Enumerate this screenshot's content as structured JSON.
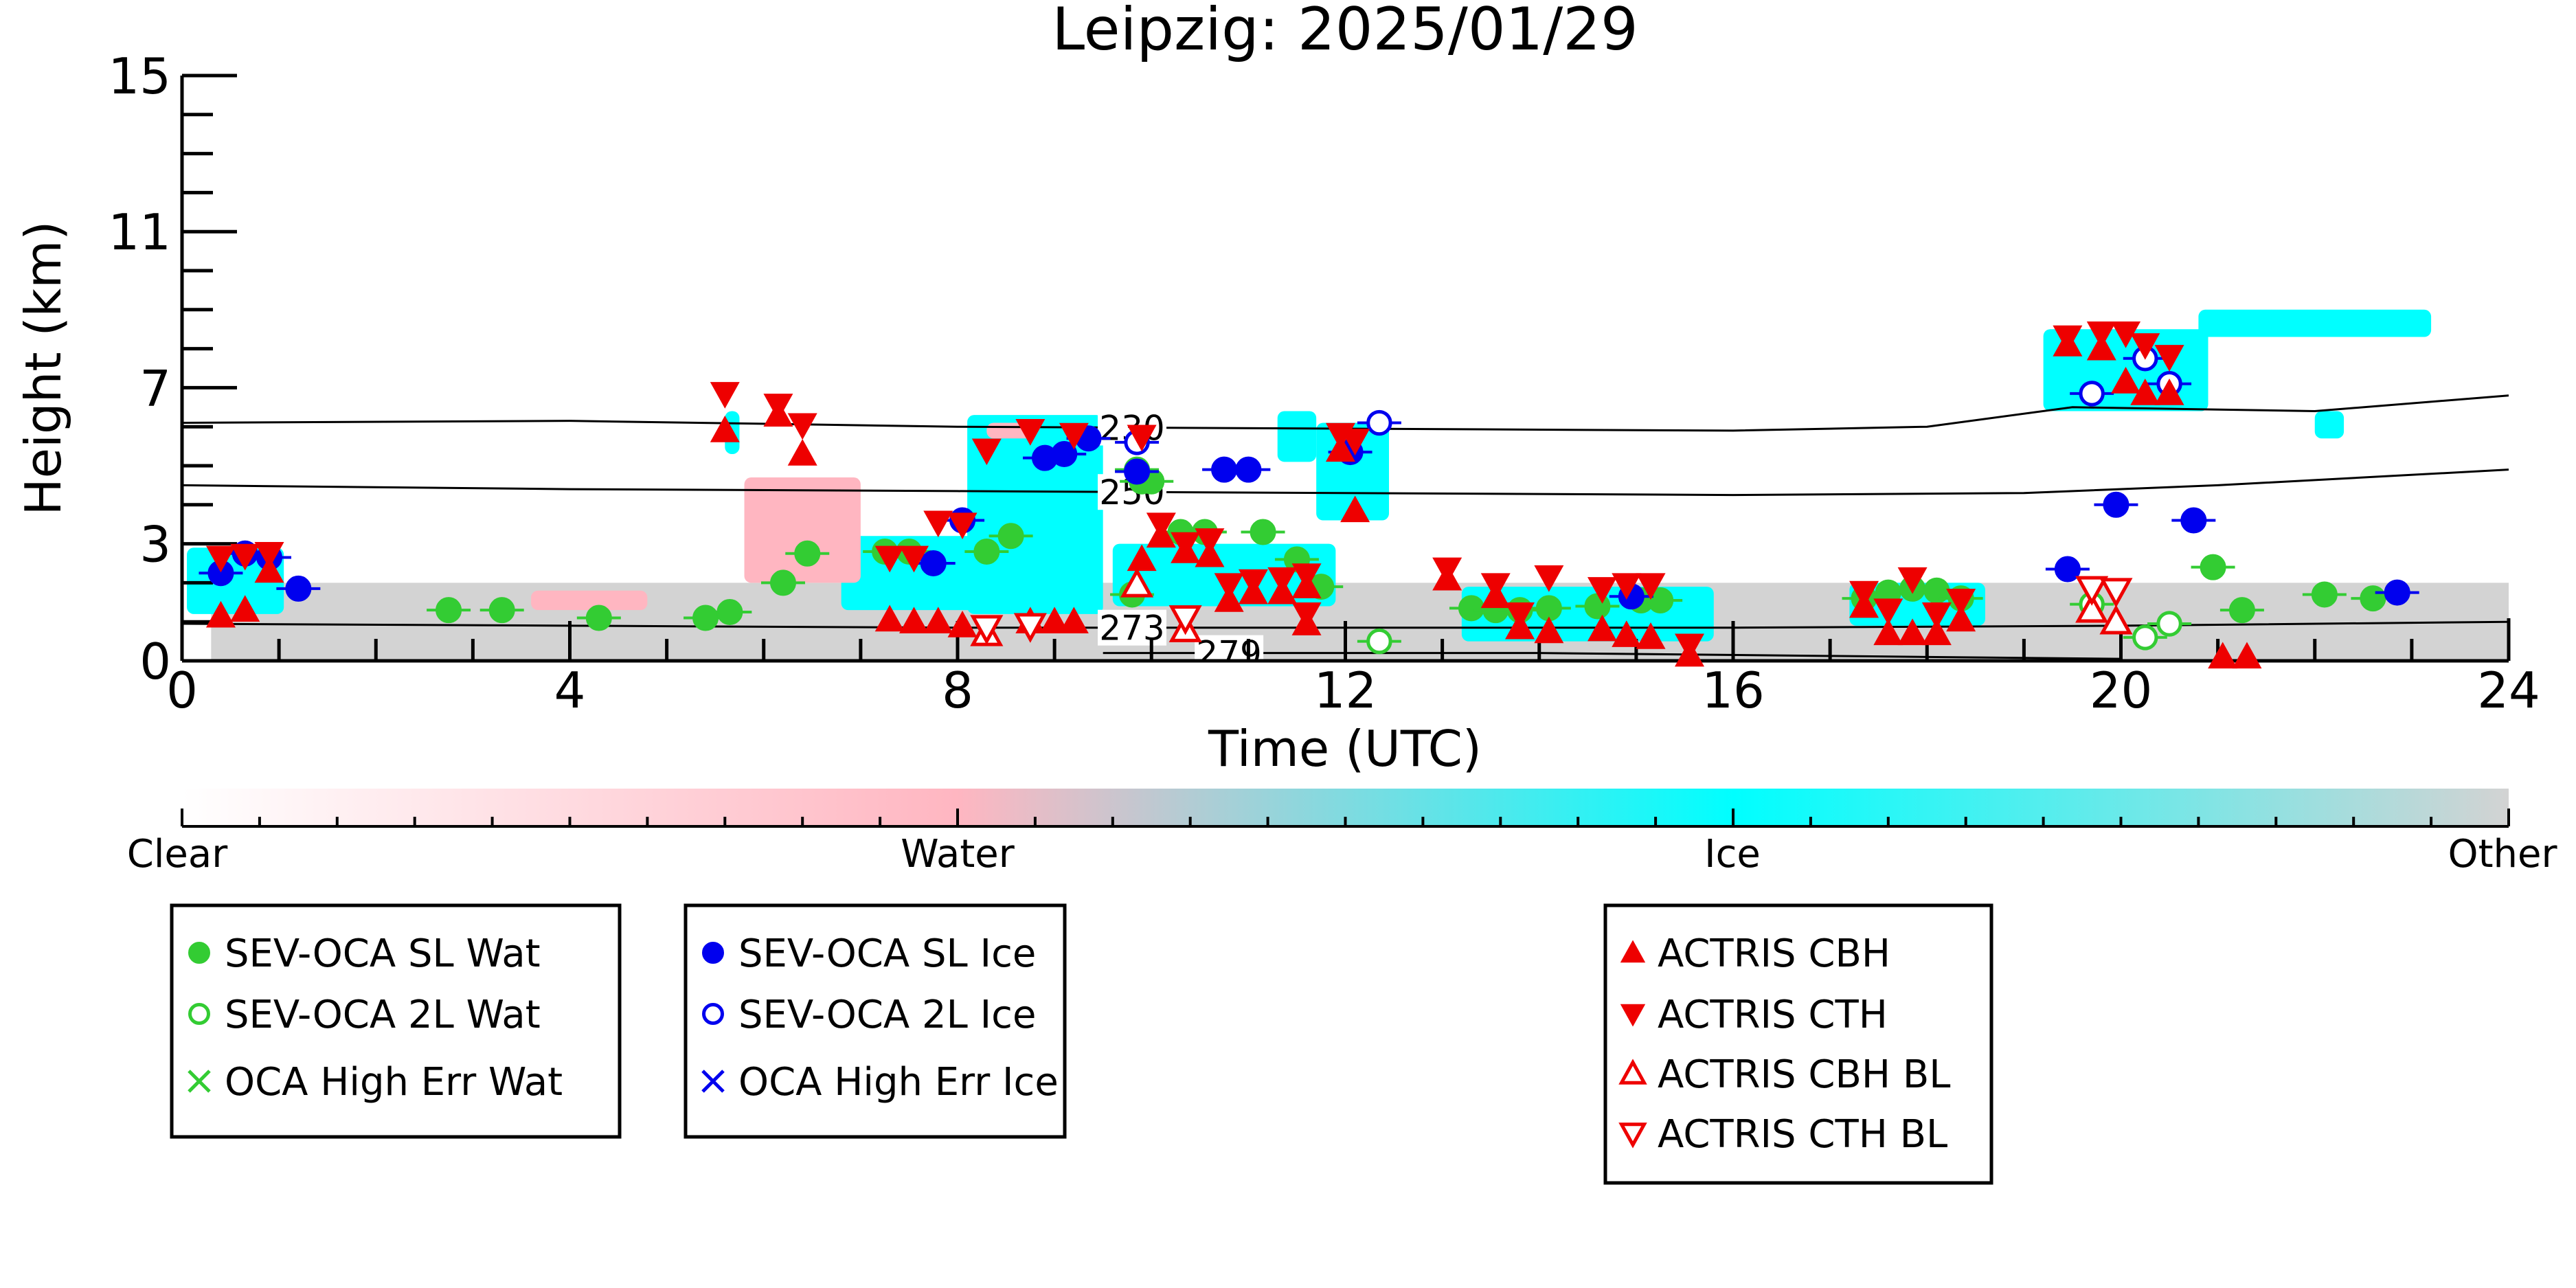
{
  "chart_data": {
    "type": "scatter",
    "title": "Leipzig: 2025/01/29",
    "xlabel": "Time (UTC)",
    "ylabel": "Height (km)",
    "xlim": [
      0,
      24
    ],
    "ylim": [
      0,
      15
    ],
    "x_ticks": [
      {
        "value": 0,
        "label": "0"
      },
      {
        "value": 4,
        "label": "4"
      },
      {
        "value": 8,
        "label": "8"
      },
      {
        "value": 12,
        "label": "12"
      },
      {
        "value": 16,
        "label": "16"
      },
      {
        "value": 20,
        "label": "20"
      },
      {
        "value": 24,
        "label": "24"
      }
    ],
    "y_ticks": [
      {
        "value": 0,
        "label": "0"
      },
      {
        "value": 3,
        "label": "3"
      },
      {
        "value": 7,
        "label": "7"
      },
      {
        "value": 11,
        "label": "11"
      },
      {
        "value": 15,
        "label": "15"
      }
    ],
    "colorbar": {
      "labels": [
        {
          "pos": 0,
          "text": "Clear"
        },
        {
          "pos": 0.333,
          "text": "Water"
        },
        {
          "pos": 0.667,
          "text": "Ice"
        },
        {
          "pos": 1,
          "text": "Other"
        }
      ],
      "colors": [
        "#ffffff",
        "#ffb6c1",
        "#00ffff",
        "#d3d3d3"
      ]
    },
    "isotherms": [
      {
        "label": "230",
        "label_x": 9.8,
        "points": [
          [
            0,
            6.1
          ],
          [
            4,
            6.15
          ],
          [
            8,
            6.0
          ],
          [
            12,
            5.95
          ],
          [
            16,
            5.9
          ],
          [
            18,
            6.0
          ],
          [
            19.5,
            6.5
          ],
          [
            22,
            6.4
          ],
          [
            24,
            6.8
          ]
        ]
      },
      {
        "label": "250",
        "label_x": 9.8,
        "points": [
          [
            0,
            4.5
          ],
          [
            4,
            4.4
          ],
          [
            8,
            4.35
          ],
          [
            12,
            4.3
          ],
          [
            16,
            4.25
          ],
          [
            19,
            4.3
          ],
          [
            21,
            4.5
          ],
          [
            24,
            4.9
          ]
        ]
      },
      {
        "label": "273",
        "label_x": 9.8,
        "points": [
          [
            0,
            0.95
          ],
          [
            4,
            0.9
          ],
          [
            8,
            0.85
          ],
          [
            12,
            0.85
          ],
          [
            16,
            0.85
          ],
          [
            20,
            0.9
          ],
          [
            24,
            1.0
          ]
        ]
      },
      {
        "label": "279",
        "label_x": 10.8,
        "points": [
          [
            9.5,
            0.2
          ],
          [
            11,
            0.2
          ],
          [
            14,
            0.2
          ],
          [
            18,
            0.1
          ],
          [
            20,
            0.05
          ]
        ]
      }
    ],
    "series": [
      {
        "name": "SEV-OCA SL Wat",
        "marker": "circle-filled",
        "color": "#33cc33",
        "points": [
          [
            2.75,
            1.3
          ],
          [
            3.3,
            1.3
          ],
          [
            4.3,
            1.1
          ],
          [
            5.4,
            1.1
          ],
          [
            5.65,
            1.25
          ],
          [
            6.2,
            2.0
          ],
          [
            6.45,
            2.75
          ],
          [
            7.25,
            2.8
          ],
          [
            7.5,
            2.8
          ],
          [
            8.3,
            2.8
          ],
          [
            8.55,
            3.2
          ],
          [
            9.8,
            1.7
          ],
          [
            9.85,
            4.9
          ],
          [
            9.9,
            4.6
          ],
          [
            10.0,
            4.6
          ],
          [
            10.3,
            3.3
          ],
          [
            10.55,
            3.3
          ],
          [
            11.15,
            3.3
          ],
          [
            11.5,
            2.6
          ],
          [
            11.75,
            1.9
          ],
          [
            13.3,
            1.35
          ],
          [
            13.55,
            1.3
          ],
          [
            13.8,
            1.3
          ],
          [
            14.1,
            1.35
          ],
          [
            14.6,
            1.4
          ],
          [
            15.05,
            1.55
          ],
          [
            15.25,
            1.55
          ],
          [
            17.35,
            1.6
          ],
          [
            17.6,
            1.75
          ],
          [
            17.85,
            1.85
          ],
          [
            18.1,
            1.8
          ],
          [
            18.35,
            1.6
          ],
          [
            20.95,
            2.4
          ],
          [
            21.25,
            1.3
          ],
          [
            22.1,
            1.7
          ],
          [
            22.6,
            1.6
          ]
        ]
      },
      {
        "name": "SEV-OCA 2L Wat",
        "marker": "circle-open",
        "color": "#33cc33",
        "points": [
          [
            12.35,
            0.5
          ],
          [
            19.7,
            1.45
          ],
          [
            20.25,
            0.6
          ],
          [
            20.5,
            0.95
          ]
        ]
      },
      {
        "name": "OCA High Err Wat",
        "marker": "cross",
        "color": "#33cc33",
        "points": []
      },
      {
        "name": "SEV-OCA SL Ice",
        "marker": "circle-filled",
        "color": "#0000ee",
        "points": [
          [
            0.4,
            2.25
          ],
          [
            0.65,
            2.75
          ],
          [
            0.9,
            2.65
          ],
          [
            1.2,
            1.85
          ],
          [
            7.75,
            2.5
          ],
          [
            8.05,
            3.6
          ],
          [
            8.9,
            5.2
          ],
          [
            9.1,
            5.3
          ],
          [
            9.35,
            5.7
          ],
          [
            9.85,
            4.85
          ],
          [
            10.75,
            4.9
          ],
          [
            11.0,
            4.9
          ],
          [
            12.05,
            5.35
          ],
          [
            14.95,
            1.65
          ],
          [
            19.45,
            2.35
          ],
          [
            19.95,
            4.0
          ],
          [
            20.75,
            3.6
          ],
          [
            22.85,
            1.75
          ]
        ]
      },
      {
        "name": "SEV-OCA 2L Ice",
        "marker": "circle-open",
        "color": "#0000ee",
        "points": [
          [
            9.85,
            5.6
          ],
          [
            12.35,
            6.1
          ],
          [
            19.7,
            6.85
          ],
          [
            20.25,
            7.75
          ],
          [
            20.5,
            7.1
          ]
        ]
      },
      {
        "name": "OCA High Err Ice",
        "marker": "cross",
        "color": "#0000ee",
        "points": []
      },
      {
        "name": "ACTRIS CBH",
        "marker": "tri-up",
        "color": "#ee0000",
        "points": [
          [
            0.4,
            1.15
          ],
          [
            0.65,
            1.3
          ],
          [
            0.9,
            2.3
          ],
          [
            5.6,
            5.9
          ],
          [
            6.15,
            6.3
          ],
          [
            6.4,
            5.3
          ],
          [
            7.3,
            1.05
          ],
          [
            7.55,
            1.0
          ],
          [
            7.8,
            1.0
          ],
          [
            8.05,
            0.9
          ],
          [
            8.75,
            1.0
          ],
          [
            9.0,
            1.0
          ],
          [
            9.2,
            1.0
          ],
          [
            9.9,
            2.6
          ],
          [
            10.1,
            3.2
          ],
          [
            10.35,
            2.8
          ],
          [
            10.6,
            2.7
          ],
          [
            10.8,
            1.55
          ],
          [
            11.05,
            1.75
          ],
          [
            11.35,
            1.75
          ],
          [
            11.6,
            0.95
          ],
          [
            11.6,
            1.9
          ],
          [
            11.95,
            5.4
          ],
          [
            12.1,
            3.85
          ],
          [
            13.05,
            2.1
          ],
          [
            13.55,
            1.65
          ],
          [
            13.8,
            0.85
          ],
          [
            14.1,
            0.75
          ],
          [
            14.65,
            0.8
          ],
          [
            14.9,
            0.65
          ],
          [
            15.15,
            0.6
          ],
          [
            15.55,
            0.15
          ],
          [
            17.35,
            1.4
          ],
          [
            17.6,
            0.7
          ],
          [
            17.85,
            0.7
          ],
          [
            18.1,
            0.7
          ],
          [
            18.35,
            1.05
          ],
          [
            19.45,
            8.1
          ],
          [
            19.8,
            8.0
          ],
          [
            20.05,
            7.15
          ],
          [
            20.25,
            6.85
          ],
          [
            20.5,
            6.85
          ],
          [
            21.05,
            0.1
          ],
          [
            21.3,
            0.1
          ]
        ]
      },
      {
        "name": "ACTRIS CTH",
        "marker": "tri-down",
        "color": "#ee0000",
        "points": [
          [
            0.4,
            2.65
          ],
          [
            0.65,
            2.7
          ],
          [
            0.9,
            2.75
          ],
          [
            5.6,
            6.85
          ],
          [
            6.15,
            6.55
          ],
          [
            6.4,
            6.05
          ],
          [
            7.3,
            2.65
          ],
          [
            7.55,
            2.65
          ],
          [
            7.8,
            3.55
          ],
          [
            8.05,
            3.5
          ],
          [
            8.3,
            5.4
          ],
          [
            8.75,
            5.9
          ],
          [
            9.2,
            5.8
          ],
          [
            9.9,
            5.75
          ],
          [
            10.1,
            3.5
          ],
          [
            10.35,
            3.0
          ],
          [
            10.6,
            3.1
          ],
          [
            10.8,
            1.95
          ],
          [
            11.05,
            2.05
          ],
          [
            11.35,
            2.1
          ],
          [
            11.6,
            1.2
          ],
          [
            11.6,
            2.2
          ],
          [
            11.95,
            5.8
          ],
          [
            12.1,
            5.65
          ],
          [
            13.05,
            2.35
          ],
          [
            13.55,
            1.95
          ],
          [
            13.8,
            1.2
          ],
          [
            14.1,
            2.15
          ],
          [
            14.65,
            1.85
          ],
          [
            14.9,
            1.95
          ],
          [
            15.15,
            1.95
          ],
          [
            15.55,
            0.4
          ],
          [
            17.35,
            1.75
          ],
          [
            17.6,
            1.3
          ],
          [
            17.85,
            2.1
          ],
          [
            18.1,
            1.2
          ],
          [
            18.35,
            1.55
          ],
          [
            19.45,
            8.3
          ],
          [
            19.8,
            8.4
          ],
          [
            20.05,
            8.4
          ],
          [
            20.25,
            8.1
          ],
          [
            20.5,
            7.8
          ]
        ]
      },
      {
        "name": "ACTRIS CBH BL",
        "marker": "tri-up-open",
        "color": "#ee0000",
        "points": [
          [
            8.3,
            0.7
          ],
          [
            9.85,
            1.95
          ],
          [
            10.35,
            0.8
          ],
          [
            19.7,
            1.3
          ],
          [
            19.95,
            1.0
          ]
        ]
      },
      {
        "name": "ACTRIS CTH BL",
        "marker": "tri-down-open",
        "color": "#ee0000",
        "points": [
          [
            8.3,
            0.85
          ],
          [
            8.75,
            0.9
          ],
          [
            10.35,
            1.1
          ],
          [
            19.7,
            1.85
          ],
          [
            19.95,
            1.8
          ]
        ]
      }
    ],
    "cloud_regions": [
      {
        "class": "Ice",
        "x": [
          0.05,
          1.05
        ],
        "y": [
          1.2,
          2.9
        ]
      },
      {
        "class": "Ice",
        "x": [
          5.6,
          5.75
        ],
        "y": [
          5.3,
          6.4
        ]
      },
      {
        "class": "Ice",
        "x": [
          6.8,
          8.2
        ],
        "y": [
          1.3,
          3.2
        ]
      },
      {
        "class": "Ice",
        "x": [
          8.1,
          9.5
        ],
        "y": [
          1.2,
          6.3
        ]
      },
      {
        "class": "Ice",
        "x": [
          9.6,
          11.9
        ],
        "y": [
          1.4,
          3.0
        ]
      },
      {
        "class": "Ice",
        "x": [
          11.3,
          11.7
        ],
        "y": [
          5.1,
          6.4
        ]
      },
      {
        "class": "Ice",
        "x": [
          11.7,
          12.45
        ],
        "y": [
          3.6,
          6.1
        ]
      },
      {
        "class": "Ice",
        "x": [
          13.2,
          15.8
        ],
        "y": [
          0.5,
          1.9
        ]
      },
      {
        "class": "Ice",
        "x": [
          17.2,
          18.6
        ],
        "y": [
          0.9,
          2.0
        ]
      },
      {
        "class": "Ice",
        "x": [
          19.2,
          20.9
        ],
        "y": [
          6.4,
          8.5
        ]
      },
      {
        "class": "Ice",
        "x": [
          20.8,
          23.2
        ],
        "y": [
          8.3,
          9.0
        ]
      },
      {
        "class": "Ice",
        "x": [
          22.0,
          22.3
        ],
        "y": [
          5.7,
          6.4
        ]
      },
      {
        "class": "Water",
        "x": [
          5.8,
          7.0
        ],
        "y": [
          2.0,
          4.7
        ]
      },
      {
        "class": "Water",
        "x": [
          3.6,
          4.8
        ],
        "y": [
          1.3,
          1.8
        ]
      },
      {
        "class": "Water",
        "x": [
          8.3,
          8.8
        ],
        "y": [
          5.7,
          6.1
        ]
      }
    ],
    "other_band": {
      "class": "Other",
      "x": [
        0.3,
        24
      ],
      "y": [
        0,
        2.0
      ]
    },
    "grid": false,
    "legend_placement": "below"
  }
}
